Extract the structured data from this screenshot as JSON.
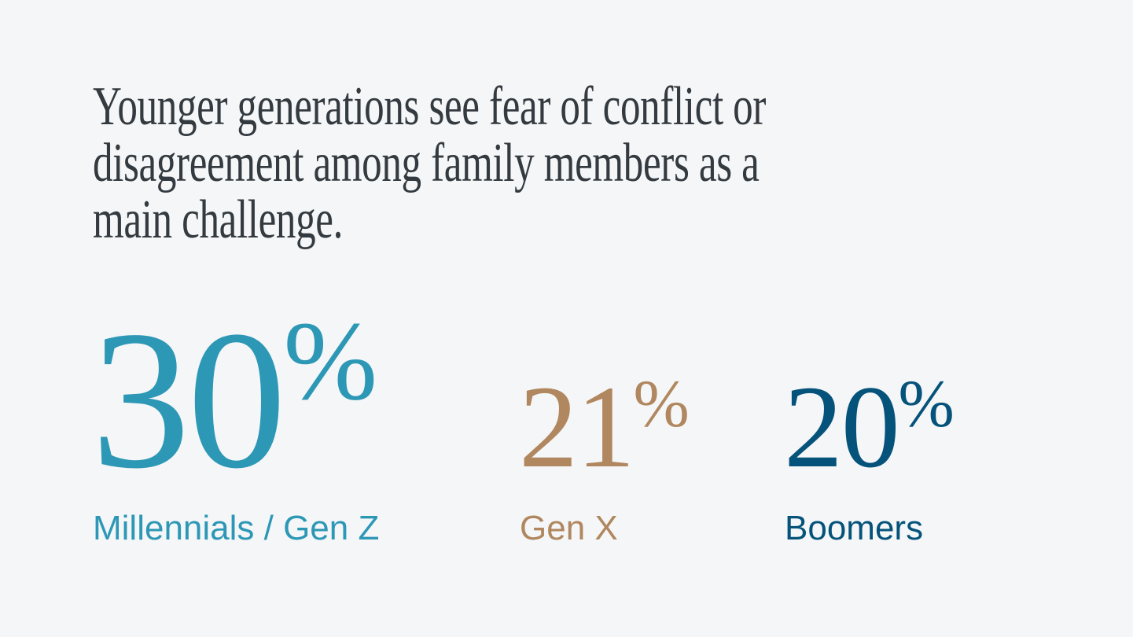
{
  "slide": {
    "background_color": "#F5F6F8",
    "heading": {
      "text": "Younger generations see fear of conflict or disagreement among family members as a main challenge.",
      "lines": [
        "Younger generations see fear of conflict or",
        "disagreement among family members as a",
        "main challenge."
      ],
      "color": "#343B40"
    },
    "stats": [
      {
        "value": "30",
        "unit": "%",
        "label": "Millennials / Gen Z",
        "color": "#2D98B5"
      },
      {
        "value": "21",
        "unit": "%",
        "label": "Gen X",
        "color": "#B0875F"
      },
      {
        "value": "20",
        "unit": "%",
        "label": "Boomers",
        "color": "#05537A"
      }
    ]
  },
  "chart_data": {
    "type": "table",
    "title": "Younger generations see fear of conflict or disagreement among family members as a main challenge.",
    "categories": [
      "Millennials / Gen Z",
      "Gen X",
      "Boomers"
    ],
    "values": [
      30,
      21,
      20
    ],
    "unit": "%",
    "series_colors": [
      "#2D98B5",
      "#B0875F",
      "#05537A"
    ],
    "background": "#F5F6F8",
    "legend": "none",
    "grid": false
  }
}
